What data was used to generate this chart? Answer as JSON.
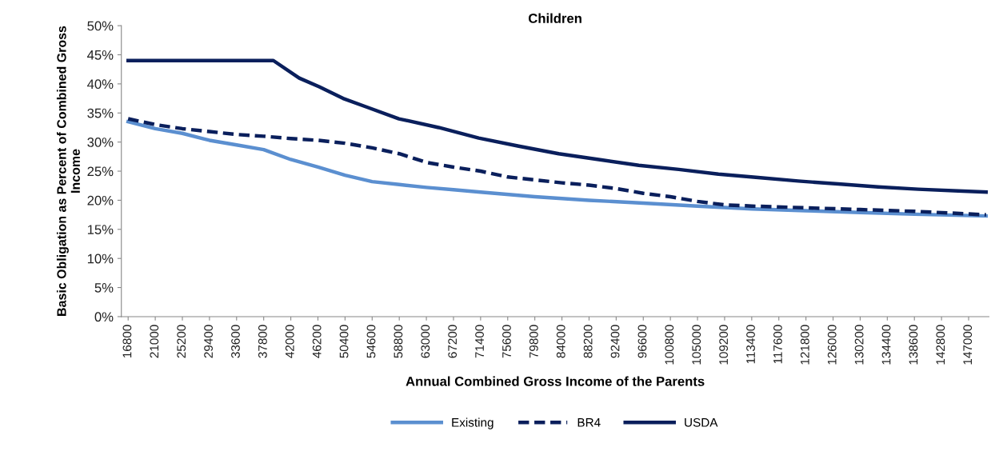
{
  "chart_data": {
    "type": "line",
    "title": "Children",
    "xlabel": "Annual Combined Gross Income of the Parents",
    "ylabel": "Basic Obligation as Percent of Combined Gross\nIncome",
    "xlim": [
      15750,
      150150
    ],
    "xticks": [
      16800,
      21000,
      25200,
      29400,
      33600,
      37800,
      42000,
      46200,
      50400,
      54600,
      58800,
      63000,
      67200,
      71400,
      75600,
      79800,
      84000,
      88200,
      92400,
      96600,
      100800,
      105000,
      109200,
      113400,
      117600,
      121800,
      126000,
      130200,
      134400,
      138600,
      142800,
      147000
    ],
    "ylim": [
      0,
      50
    ],
    "yticks": [
      {
        "value": 0,
        "label": "0%"
      },
      {
        "value": 5,
        "label": "5%"
      },
      {
        "value": 10,
        "label": "10%"
      },
      {
        "value": 15,
        "label": "15%"
      },
      {
        "value": 20,
        "label": "20%"
      },
      {
        "value": 25,
        "label": "25%"
      },
      {
        "value": 30,
        "label": "30%"
      },
      {
        "value": 35,
        "label": "35%"
      },
      {
        "value": 40,
        "label": "40%"
      },
      {
        "value": 45,
        "label": "45%"
      },
      {
        "value": 50,
        "label": "50%"
      }
    ],
    "grid": false,
    "legend": "bottom",
    "marker": "none",
    "series": [
      {
        "name": "Existing",
        "color": "#5b8fd0",
        "line_style": "solid",
        "x": [
          16800,
          21000,
          25200,
          29400,
          33600,
          37800,
          42000,
          46200,
          50400,
          54600,
          58800,
          63000,
          67200,
          71400,
          79800,
          88200,
          96600,
          105000,
          113400,
          121800,
          130200,
          138600,
          149700
        ],
        "values": [
          33.5,
          32.3,
          31.5,
          30.3,
          29.5,
          28.7,
          27,
          25.7,
          24.3,
          23.2,
          22.7,
          22.2,
          21.8,
          21.4,
          20.6,
          20,
          19.5,
          19,
          18.5,
          18.2,
          17.9,
          17.6,
          17.3
        ]
      },
      {
        "name": "BR4",
        "color": "#0a1f5c",
        "line_style": "dashed",
        "x": [
          16800,
          21000,
          25200,
          29400,
          33600,
          37800,
          42000,
          46200,
          50400,
          54600,
          58800,
          63000,
          67200,
          71400,
          75600,
          79800,
          84000,
          88200,
          92400,
          96600,
          100800,
          105000,
          109200,
          113400,
          121800,
          130200,
          138600,
          149700
        ],
        "values": [
          34,
          33,
          32.3,
          31.8,
          31.3,
          31,
          30.6,
          30.3,
          29.8,
          29,
          28,
          26.5,
          25.7,
          25,
          24,
          23.5,
          23,
          22.6,
          22,
          21.2,
          20.6,
          19.8,
          19.2,
          19,
          18.7,
          18.4,
          18.1,
          17.5
        ]
      },
      {
        "name": "USDA",
        "color": "#0a1f5c",
        "line_style": "solid",
        "x": [
          16800,
          39300,
          43300,
          46400,
          50100,
          53800,
          58750,
          64900,
          71100,
          77300,
          83500,
          89700,
          95900,
          102100,
          108250,
          114400,
          120600,
          126800,
          133000,
          139200,
          145400,
          149700
        ],
        "values": [
          44,
          44,
          41,
          39.5,
          37.5,
          36,
          34,
          32.5,
          30.7,
          29.3,
          28,
          27,
          26,
          25.3,
          24.5,
          23.9,
          23.3,
          22.8,
          22.3,
          21.9,
          21.6,
          21.4
        ]
      }
    ]
  }
}
